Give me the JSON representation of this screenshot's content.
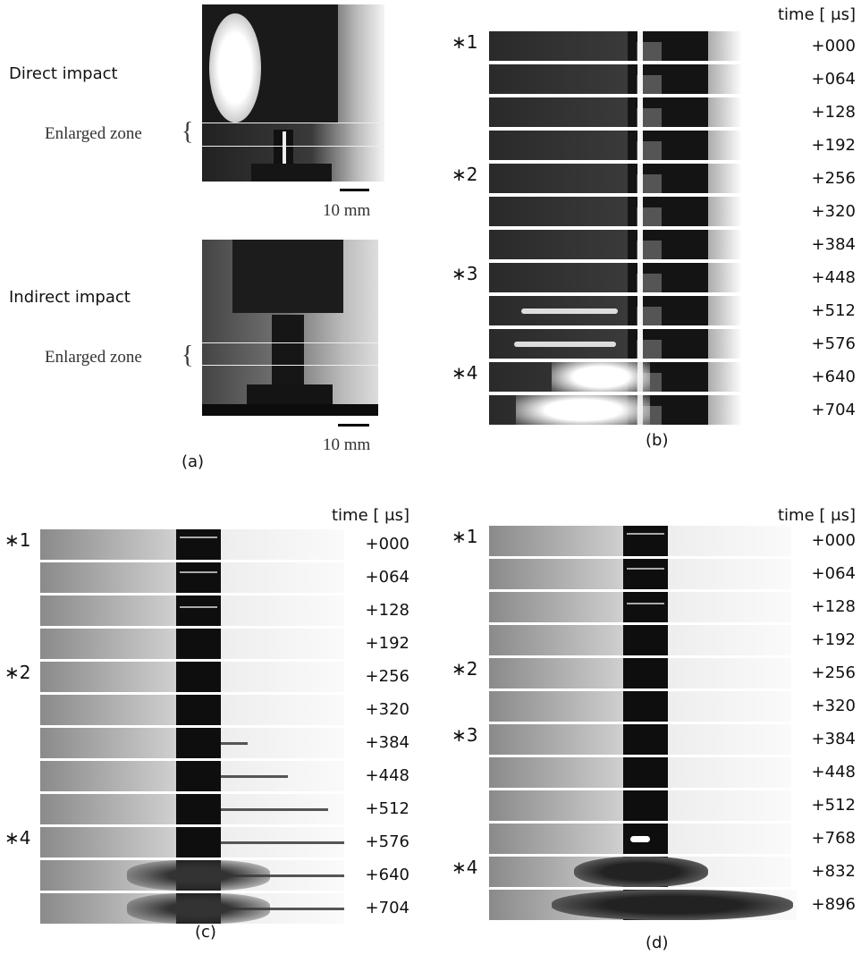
{
  "panel_a": {
    "label": "(a)",
    "direct": {
      "title": "Direct impact",
      "zone": "Enlarged zone",
      "scale": "10 mm"
    },
    "indirect": {
      "title": "Indirect impact",
      "zone": "Enlarged zone",
      "scale": "10 mm"
    }
  },
  "panel_b": {
    "label": "(b)",
    "header": "time [ μs]",
    "frames": [
      {
        "marker": "∗1",
        "time": "+000"
      },
      {
        "time": "+064"
      },
      {
        "time": "+128"
      },
      {
        "time": "+192"
      },
      {
        "marker": "∗2",
        "time": "+256"
      },
      {
        "time": "+320"
      },
      {
        "time": "+384"
      },
      {
        "marker": "∗3",
        "time": "+448"
      },
      {
        "time": "+512"
      },
      {
        "time": "+576"
      },
      {
        "marker": "∗4",
        "time": "+640"
      },
      {
        "time": "+704"
      }
    ]
  },
  "panel_c": {
    "label": "(c)",
    "header": "time [ μs]",
    "frames": [
      {
        "marker": "∗1",
        "time": "+000"
      },
      {
        "time": "+064"
      },
      {
        "time": "+128"
      },
      {
        "time": "+192"
      },
      {
        "marker": "∗2",
        "time": "+256"
      },
      {
        "time": "+320"
      },
      {
        "time": "+384"
      },
      {
        "time": "+448"
      },
      {
        "time": "+512"
      },
      {
        "marker": "∗4",
        "time": "+576"
      },
      {
        "time": "+640"
      },
      {
        "time": "+704"
      }
    ]
  },
  "panel_d": {
    "label": "(d)",
    "header": "time [ μs]",
    "frames": [
      {
        "marker": "∗1",
        "time": "+000"
      },
      {
        "time": "+064"
      },
      {
        "time": "+128"
      },
      {
        "time": "+192"
      },
      {
        "marker": "∗2",
        "time": "+256"
      },
      {
        "time": "+320"
      },
      {
        "marker": "∗3",
        "time": "+384"
      },
      {
        "time": "+448"
      },
      {
        "time": "+512"
      },
      {
        "time": "+768"
      },
      {
        "marker": "∗4",
        "time": "+832"
      },
      {
        "time": "+896"
      }
    ]
  }
}
